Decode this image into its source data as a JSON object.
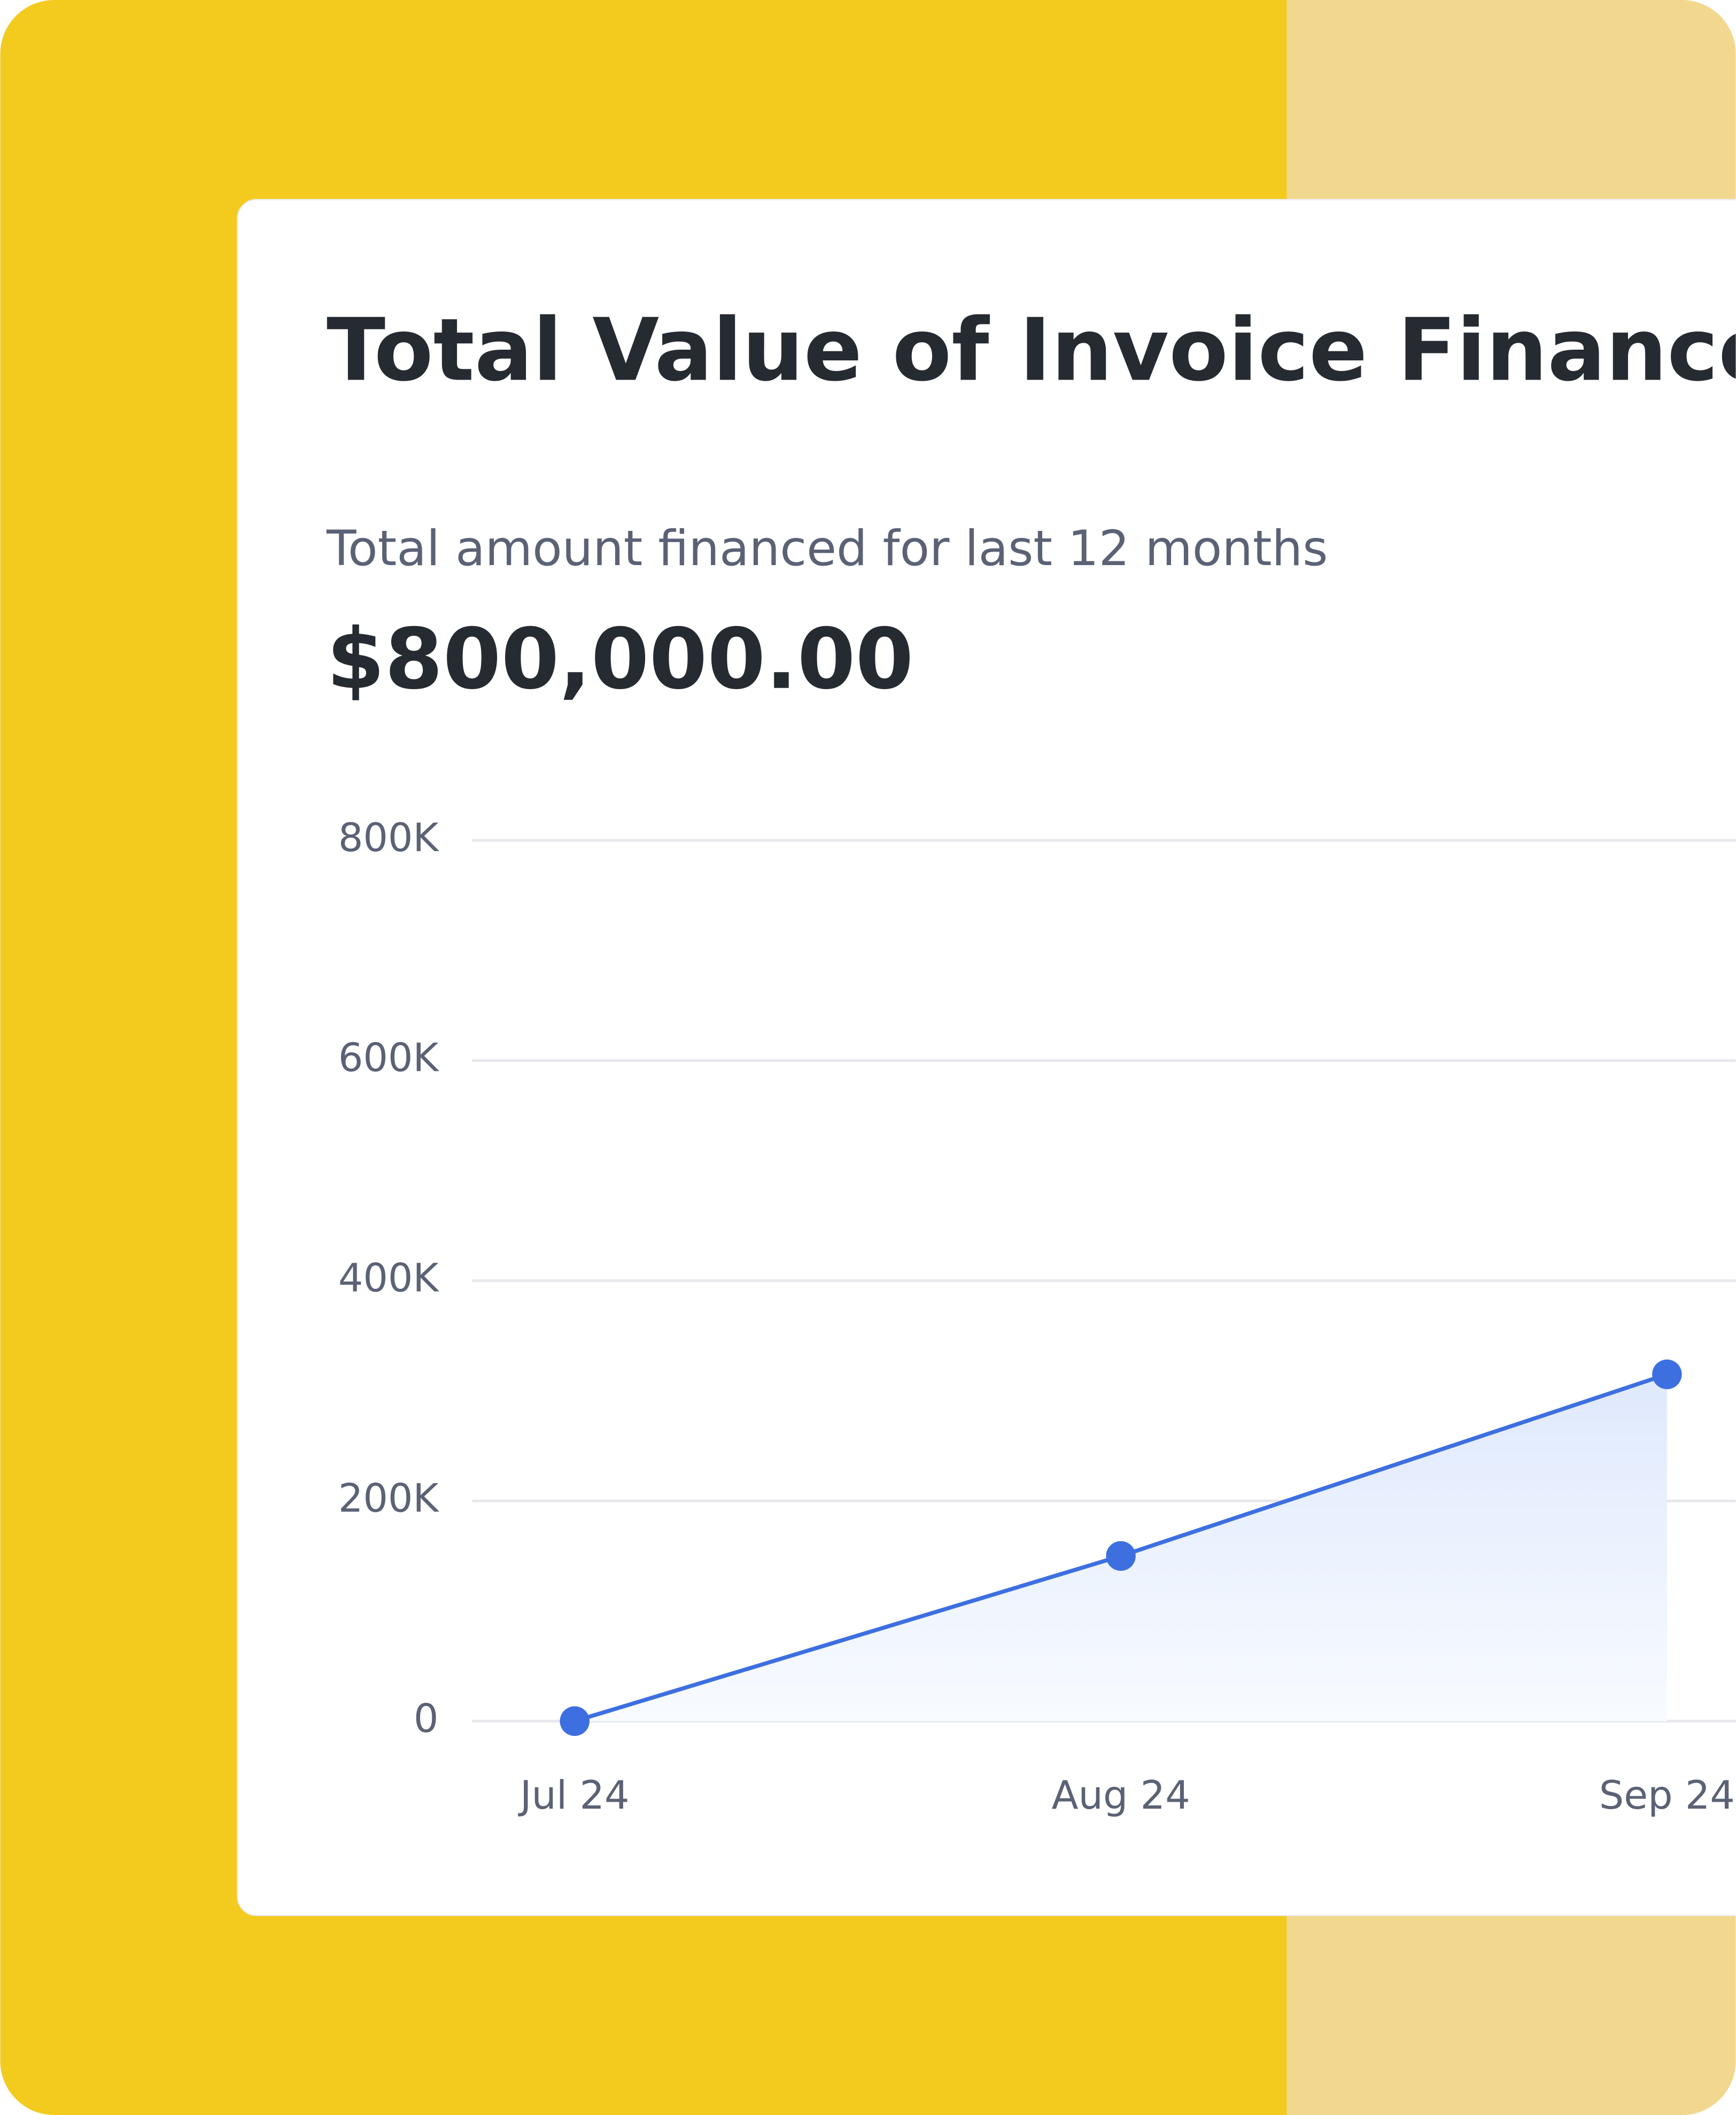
{
  "chart_data": {
    "type": "line",
    "title": "Total Value of Invoice Financed",
    "subtitle": "Total amount financed for last 12 months",
    "headline": "$800,000.00",
    "categories": [
      "Jul 24",
      "Aug 24",
      "Sep 24"
    ],
    "values": [
      0,
      150000,
      315000
    ],
    "color": "#3d6fe0",
    "ylim": [
      0,
      800000
    ],
    "yticks": [
      0,
      {
        "value": 200000,
        "label": "200K"
      },
      {
        "value": 400000,
        "label": "400K"
      },
      {
        "value": 600000,
        "label": "600K"
      },
      {
        "value": 800000,
        "label": "800K"
      }
    ],
    "grid": true
  }
}
